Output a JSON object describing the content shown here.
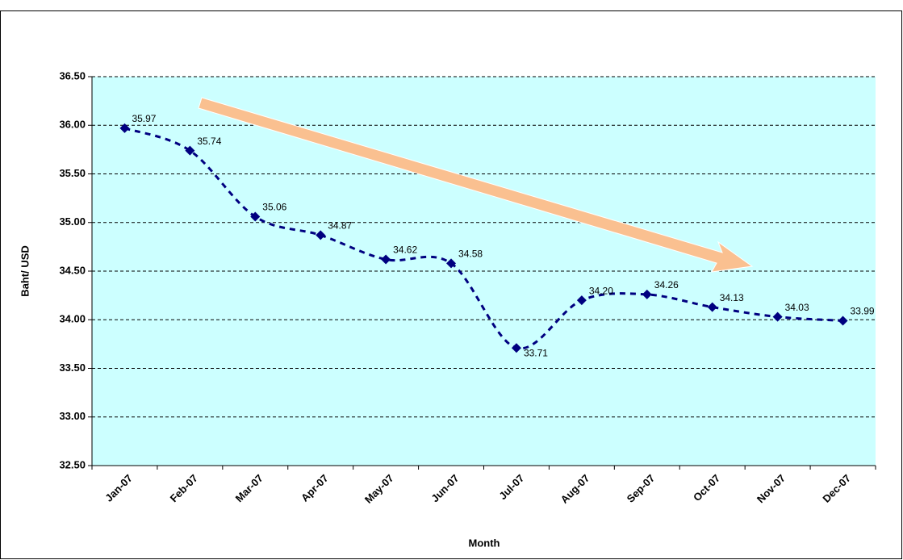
{
  "chart_data": {
    "type": "line",
    "ylabel": "Baht/ USD",
    "xlabel": "Month",
    "categories": [
      "Jan-07",
      "Feb-07",
      "Mar-07",
      "Apr-07",
      "May-07",
      "Jun-07",
      "Jul-07",
      "Aug-07",
      "Sep-07",
      "Oct-07",
      "Nov-07",
      "Dec-07"
    ],
    "values": [
      35.97,
      35.74,
      35.06,
      34.87,
      34.62,
      34.58,
      33.71,
      34.2,
      34.26,
      34.13,
      34.03,
      33.99
    ],
    "value_labels": [
      "35.97",
      "35.74",
      "35.06",
      "34.87",
      "34.62",
      "34.58",
      "33.71",
      "34.20",
      "34.26",
      "34.13",
      "34.03",
      "33.99"
    ],
    "color": "#000080",
    "background": "#ccffff",
    "ylim": [
      32.5,
      36.5
    ],
    "yticks": [
      {
        "value": 32.5,
        "label": "32.50"
      },
      {
        "value": 33,
        "label": "33.00"
      },
      {
        "value": 33.5,
        "label": "33.50"
      },
      {
        "value": 34,
        "label": "34.00"
      },
      {
        "value": 34.5,
        "label": "34.50"
      },
      {
        "value": 35,
        "label": "35.00"
      },
      {
        "value": 35.5,
        "label": "35.50"
      },
      {
        "value": 36,
        "label": "36.00"
      },
      {
        "value": 36.5,
        "label": "36.50"
      }
    ],
    "grid": true
  }
}
